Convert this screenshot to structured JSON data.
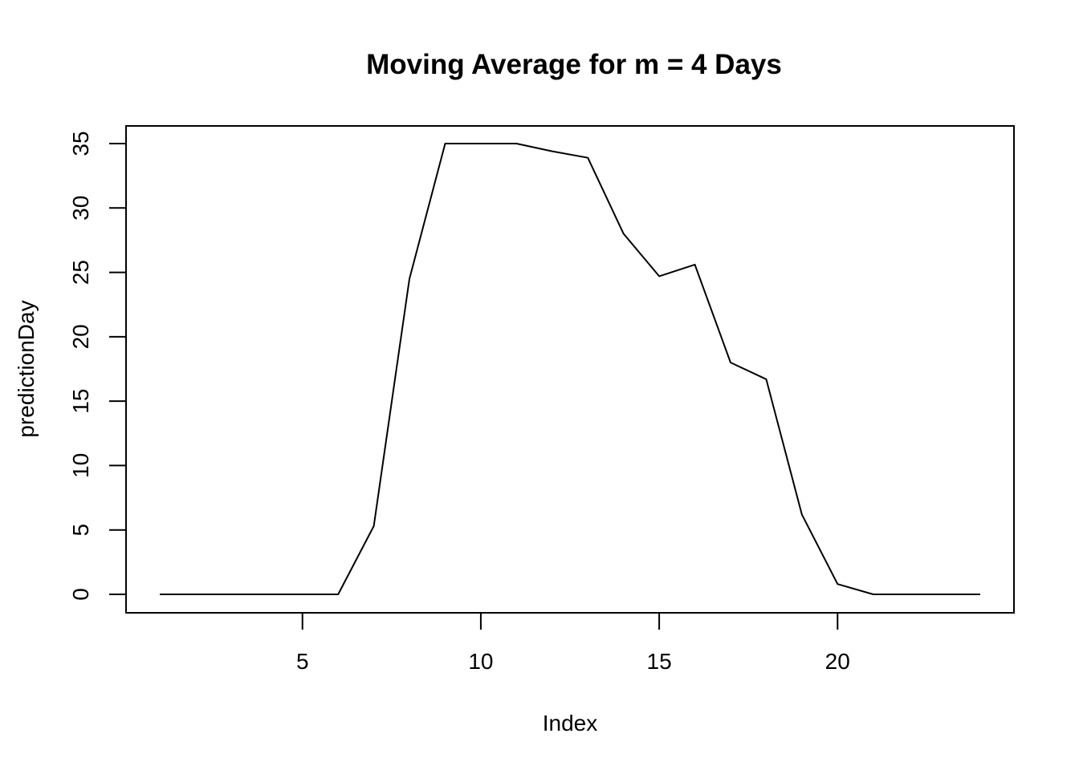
{
  "chart_data": {
    "type": "line",
    "title": "Moving Average for m = 4 Days",
    "xlabel": "Index",
    "ylabel": "predictionDay",
    "xlim": [
      1,
      24
    ],
    "ylim": [
      0,
      35
    ],
    "x_ticks": [
      5,
      10,
      15,
      20
    ],
    "y_ticks": [
      0,
      5,
      10,
      15,
      20,
      25,
      30,
      35
    ],
    "grid": false,
    "legend": "none",
    "series": [
      {
        "color": "#000000",
        "x": [
          1,
          2,
          3,
          4,
          5,
          6,
          7,
          8,
          9,
          10,
          11,
          12,
          13,
          14,
          15,
          16,
          17,
          18,
          19,
          20,
          21,
          22,
          23,
          24
        ],
        "y": [
          0,
          0,
          0,
          0,
          0,
          0,
          5.3,
          24.5,
          35,
          35,
          35,
          34.4,
          33.9,
          28,
          24.7,
          25.6,
          18,
          16.7,
          6.2,
          0.8,
          0,
          0,
          0,
          0
        ]
      }
    ]
  }
}
